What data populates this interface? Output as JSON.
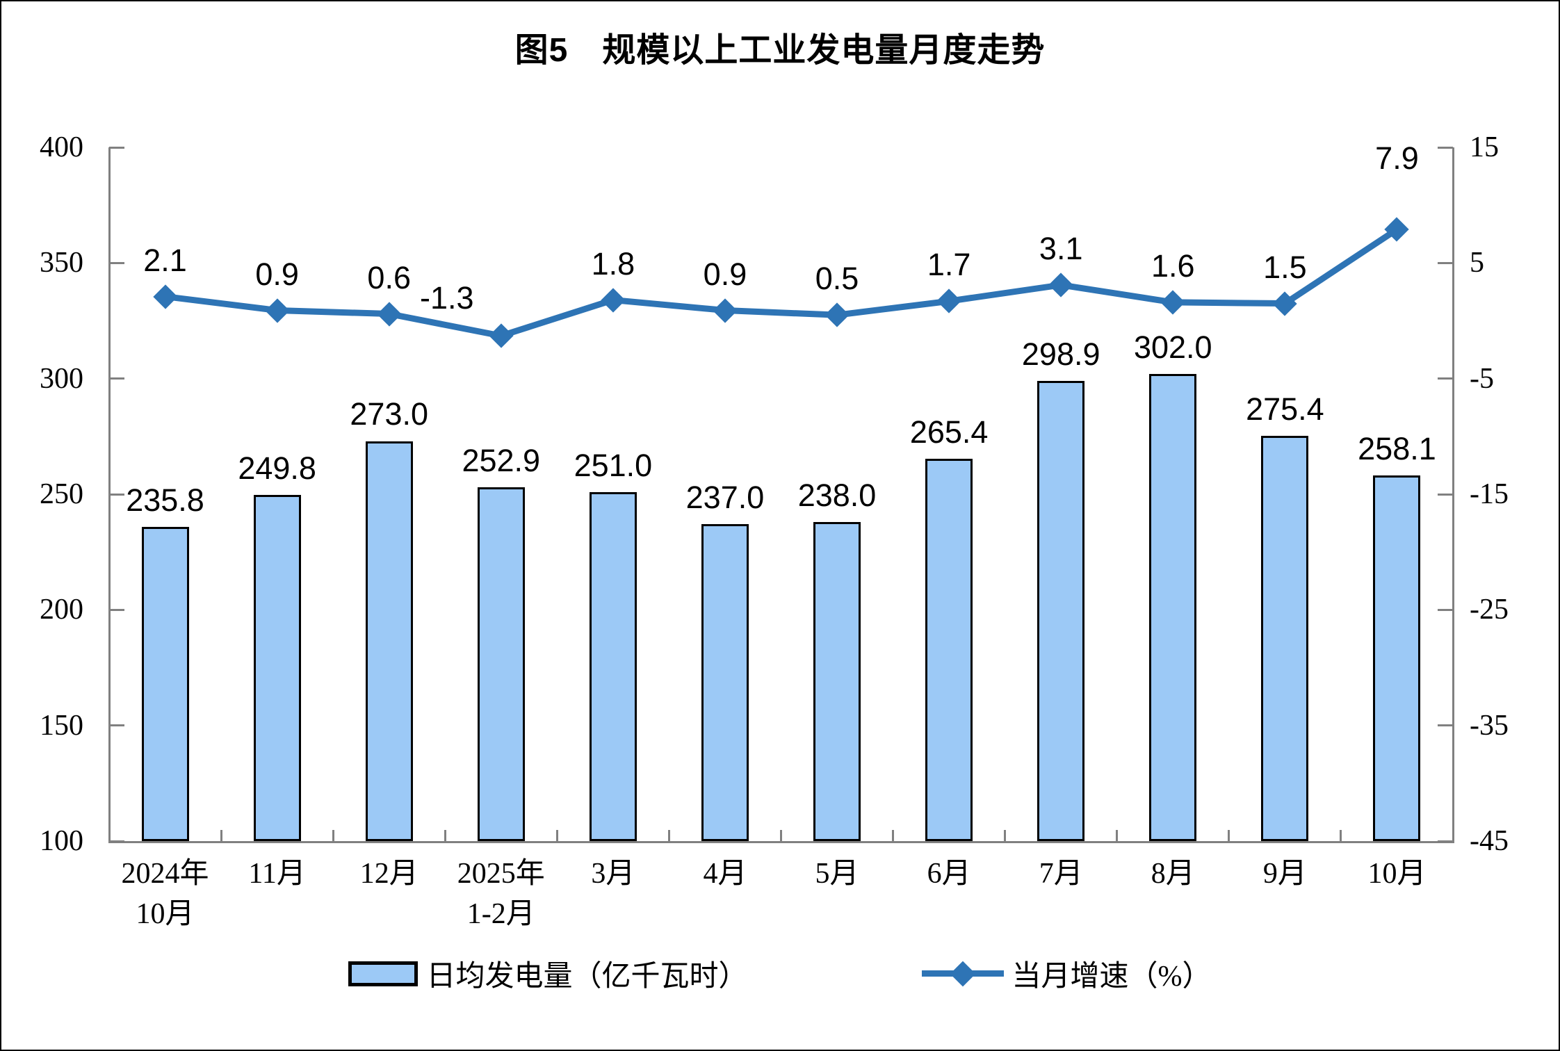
{
  "title": "图5　规模以上工业发电量月度走势",
  "chart_data": {
    "type": "combo_bar_line",
    "categories": [
      "2024年\n10月",
      "11月",
      "12月",
      "2025年\n1-2月",
      "3月",
      "4月",
      "5月",
      "6月",
      "7月",
      "8月",
      "9月",
      "10月"
    ],
    "series": [
      {
        "name": "日均发电量（亿千瓦时）",
        "type": "bar",
        "axis": "left",
        "values": [
          235.8,
          249.8,
          273.0,
          252.9,
          251.0,
          237.0,
          238.0,
          265.4,
          298.9,
          302.0,
          275.4,
          258.1
        ],
        "labels": [
          "235.8",
          "249.8",
          "273.0",
          "252.9",
          "251.0",
          "237.0",
          "238.0",
          "265.4",
          "298.9",
          "302.0",
          "275.4",
          "258.1"
        ]
      },
      {
        "name": "当月增速（%）",
        "type": "line",
        "axis": "right",
        "values": [
          2.1,
          0.9,
          0.6,
          -1.3,
          1.8,
          0.9,
          0.5,
          1.7,
          3.1,
          1.6,
          1.5,
          7.9
        ],
        "labels": [
          "2.1",
          "0.9",
          "0.6",
          "-1.3",
          "1.8",
          "0.9",
          "0.5",
          "1.7",
          "3.1",
          "1.6",
          "1.5",
          "7.9"
        ]
      }
    ],
    "left_axis": {
      "min": 100,
      "max": 400,
      "step": 50,
      "tick_labels": [
        "400",
        "350",
        "300",
        "250",
        "200",
        "150",
        "100"
      ]
    },
    "right_axis": {
      "min": -45,
      "max": 15,
      "step": 10,
      "tick_labels": [
        "15",
        "5",
        "-5",
        "-15",
        "-25",
        "-35",
        "-45"
      ]
    },
    "legend": {
      "position": "bottom",
      "items": [
        "日均发电量（亿千瓦时）",
        "当月增速（%）"
      ]
    },
    "grid": false,
    "colors": {
      "bar_fill": "#9CC9F6",
      "bar_border": "#000000",
      "line": "#2E74B5",
      "axis": "#808080",
      "text": "#000000",
      "background": "#FFFFFF"
    },
    "label_offsets": {
      "default_dy": -52,
      "overrides": {
        "3": {
          "dx": -78,
          "dy": -54
        },
        "11": {
          "dx": 0,
          "dy": -102
        }
      }
    }
  }
}
